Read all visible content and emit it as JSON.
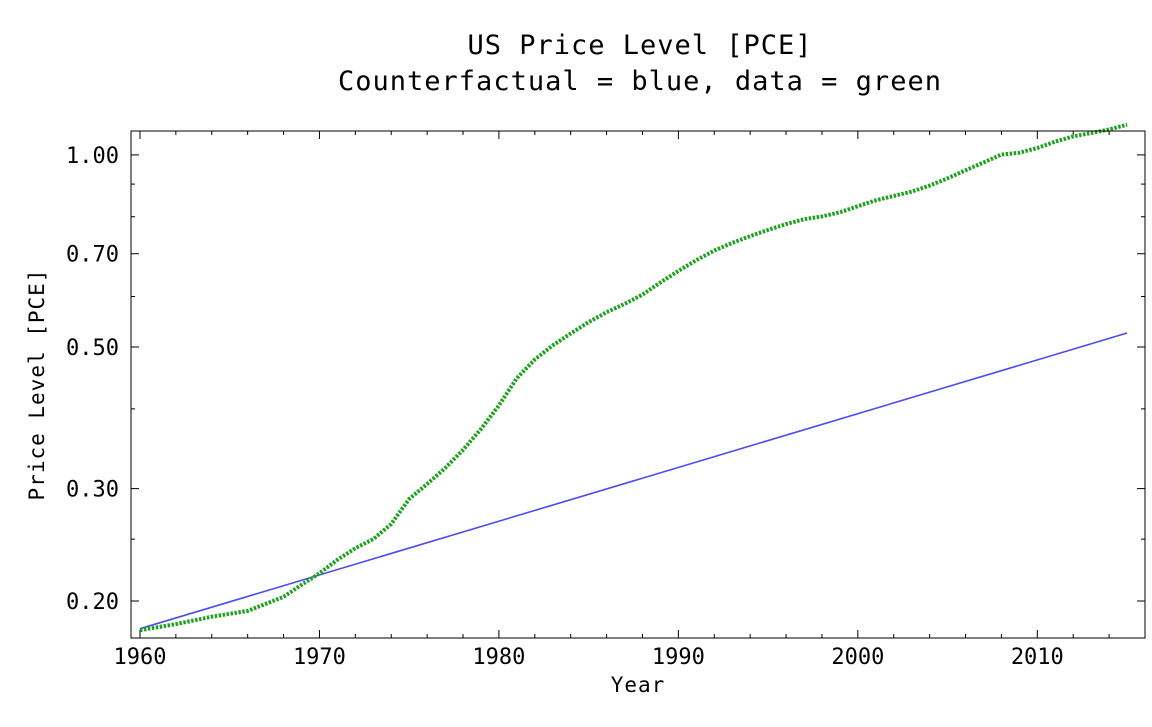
{
  "chart_data": {
    "type": "line",
    "title_line1": "US Price Level [PCE]",
    "title_line2": "Counterfactual = blue, data = green",
    "xlabel": "Year",
    "ylabel": "Price Level [PCE]",
    "yscale": "log",
    "xlim": [
      1959.5,
      2016.0
    ],
    "ylim": [
      0.175,
      1.09
    ],
    "xticks": [
      1960,
      1970,
      1980,
      1990,
      2000,
      2010
    ],
    "xtick_labels": [
      "1960",
      "1970",
      "1980",
      "1990",
      "2000",
      "2010"
    ],
    "yticks": [
      0.2,
      0.3,
      0.5,
      0.7,
      1.0
    ],
    "ytick_labels": [
      "0.20",
      "0.30",
      "0.50",
      "0.70",
      "1.00"
    ],
    "series": [
      {
        "name": "Counterfactual",
        "color": "#4b4bf0",
        "style": "solid",
        "x": [
          1960,
          2015
        ],
        "y": [
          0.181,
          0.526
        ]
      },
      {
        "name": "data",
        "color": "#1fa21f",
        "style": "dotted",
        "x": [
          1960,
          1962,
          1964,
          1966,
          1968,
          1969,
          1970,
          1971,
          1972,
          1973,
          1974,
          1975,
          1976,
          1977,
          1978,
          1979,
          1980,
          1981,
          1982,
          1983,
          1984,
          1985,
          1986,
          1987,
          1988,
          1989,
          1990,
          1991,
          1992,
          1993,
          1994,
          1995,
          1996,
          1997,
          1998,
          1999,
          2000,
          2001,
          2002,
          2003,
          2004,
          2005,
          2006,
          2007,
          2008,
          2009,
          2010,
          2011,
          2012,
          2013,
          2014,
          2015
        ],
        "y": [
          0.18,
          0.184,
          0.189,
          0.193,
          0.203,
          0.212,
          0.221,
          0.232,
          0.242,
          0.25,
          0.264,
          0.289,
          0.305,
          0.323,
          0.345,
          0.372,
          0.405,
          0.447,
          0.478,
          0.503,
          0.525,
          0.547,
          0.567,
          0.584,
          0.604,
          0.631,
          0.658,
          0.684,
          0.708,
          0.728,
          0.746,
          0.763,
          0.779,
          0.793,
          0.801,
          0.813,
          0.831,
          0.849,
          0.862,
          0.876,
          0.895,
          0.919,
          0.946,
          0.973,
          1.001,
          1.008,
          1.025,
          1.049,
          1.069,
          1.082,
          1.096,
          1.115
        ]
      }
    ]
  }
}
